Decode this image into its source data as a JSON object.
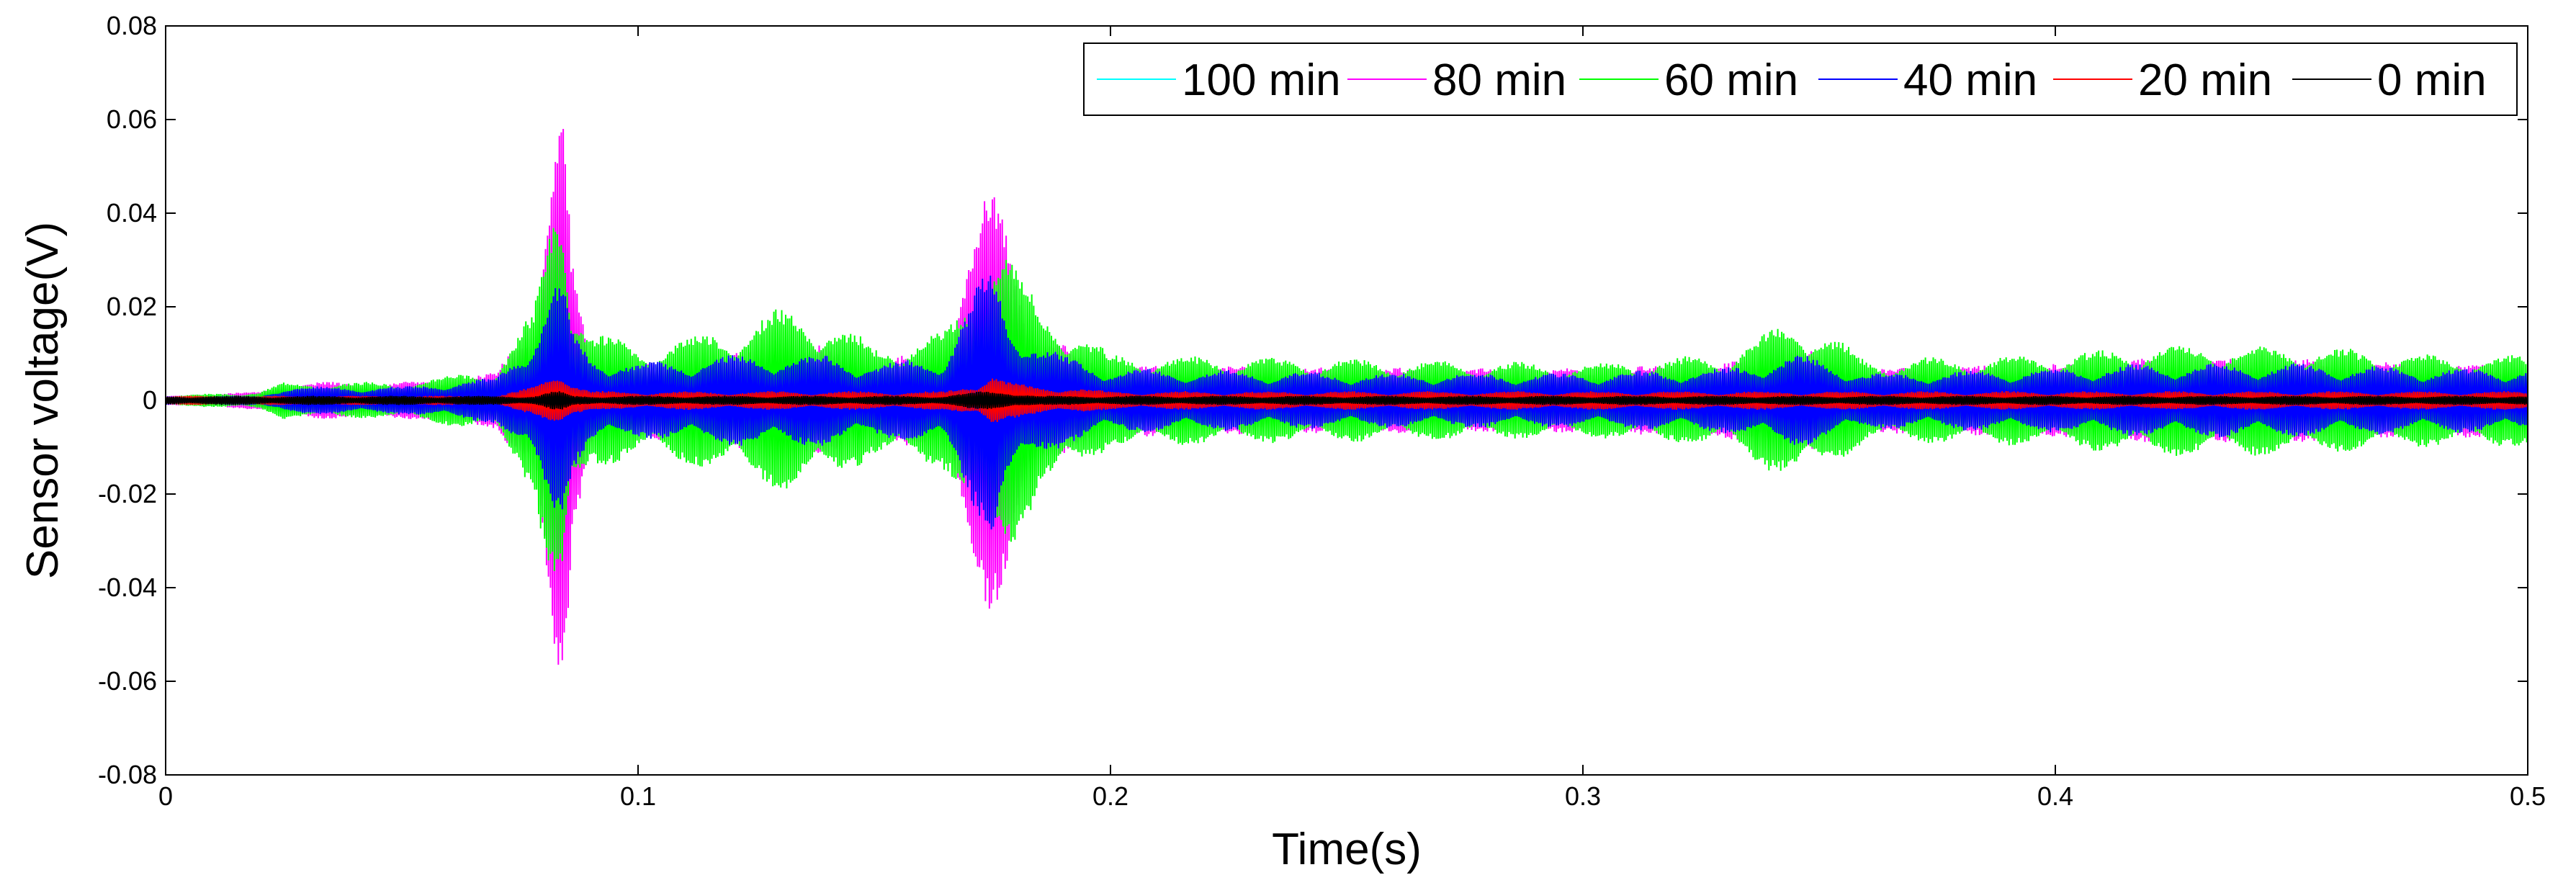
{
  "chart_data": {
    "type": "line",
    "title": "",
    "xlabel": "Time(s)",
    "ylabel": "Sensor voltage(V)",
    "xlim": [
      0,
      0.5
    ],
    "ylim": [
      -0.08,
      0.08
    ],
    "xticks": [
      0,
      0.1,
      0.2,
      0.3,
      0.4,
      0.5
    ],
    "xtick_labels": [
      "0",
      "0.1",
      "0.2",
      "0.3",
      "0.4",
      "0.5"
    ],
    "yticks": [
      -0.08,
      -0.06,
      -0.04,
      -0.02,
      0,
      0.02,
      0.04,
      0.06,
      0.08
    ],
    "ytick_labels": [
      "-0.08",
      "-0.06",
      "-0.04",
      "-0.02",
      "0",
      "0.02",
      "0.04",
      "0.06",
      "0.08"
    ],
    "grid": false,
    "legend_position": "top-right",
    "legend_orientation": "horizontal",
    "series_description": "Oscillating sensor voltage signals; each series is summarised by its approximate envelope amplitude (V) versus time (s).",
    "envelope_time": [
      0,
      0.02,
      0.025,
      0.05,
      0.07,
      0.078,
      0.082,
      0.084,
      0.086,
      0.09,
      0.1,
      0.12,
      0.13,
      0.14,
      0.15,
      0.165,
      0.172,
      0.175,
      0.178,
      0.185,
      0.19,
      0.2,
      0.25,
      0.3,
      0.33,
      0.345,
      0.35,
      0.36,
      0.4,
      0.42,
      0.45,
      0.48,
      0.5
    ],
    "series": [
      {
        "name": "100 min",
        "color": "#00ffff",
        "envelope": [
          0.001,
          0.001,
          0.002,
          0.002,
          0.003,
          0.006,
          0.02,
          0.025,
          0.01,
          0.004,
          0.003,
          0.004,
          0.005,
          0.004,
          0.004,
          0.006,
          0.012,
          0.015,
          0.01,
          0.006,
          0.005,
          0.004,
          0.004,
          0.004,
          0.004,
          0.005,
          0.004,
          0.004,
          0.004,
          0.004,
          0.004,
          0.004,
          0.004
        ]
      },
      {
        "name": "80 min",
        "color": "#ff00ff",
        "envelope": [
          0.001,
          0.002,
          0.004,
          0.004,
          0.006,
          0.02,
          0.06,
          0.068,
          0.03,
          0.01,
          0.008,
          0.01,
          0.012,
          0.012,
          0.008,
          0.012,
          0.04,
          0.047,
          0.04,
          0.015,
          0.012,
          0.008,
          0.007,
          0.007,
          0.008,
          0.012,
          0.01,
          0.007,
          0.008,
          0.009,
          0.009,
          0.008,
          0.008
        ]
      },
      {
        "name": "60 min",
        "color": "#00ff00",
        "envelope": [
          0.001,
          0.002,
          0.004,
          0.004,
          0.007,
          0.02,
          0.045,
          0.05,
          0.025,
          0.015,
          0.012,
          0.016,
          0.02,
          0.018,
          0.012,
          0.015,
          0.025,
          0.035,
          0.035,
          0.02,
          0.018,
          0.01,
          0.009,
          0.008,
          0.01,
          0.018,
          0.016,
          0.009,
          0.01,
          0.012,
          0.012,
          0.01,
          0.01
        ]
      },
      {
        "name": "40 min",
        "color": "#0000ff",
        "envelope": [
          0.001,
          0.001,
          0.003,
          0.003,
          0.005,
          0.015,
          0.025,
          0.026,
          0.015,
          0.01,
          0.008,
          0.01,
          0.01,
          0.01,
          0.008,
          0.01,
          0.025,
          0.03,
          0.02,
          0.012,
          0.01,
          0.007,
          0.006,
          0.006,
          0.007,
          0.01,
          0.009,
          0.006,
          0.007,
          0.008,
          0.008,
          0.007,
          0.007
        ]
      },
      {
        "name": "20 min",
        "color": "#ff0000",
        "envelope": [
          0.001,
          0.001,
          0.001,
          0.001,
          0.001,
          0.003,
          0.006,
          0.007,
          0.004,
          0.002,
          0.002,
          0.002,
          0.002,
          0.002,
          0.002,
          0.002,
          0.004,
          0.006,
          0.004,
          0.003,
          0.003,
          0.002,
          0.002,
          0.002,
          0.002,
          0.002,
          0.002,
          0.002,
          0.002,
          0.002,
          0.002,
          0.002,
          0.002
        ]
      },
      {
        "name": "0 min",
        "color": "#000000",
        "envelope": [
          0.001,
          0.001,
          0.001,
          0.001,
          0.001,
          0.001,
          0.002,
          0.002,
          0.001,
          0.001,
          0.001,
          0.001,
          0.001,
          0.001,
          0.001,
          0.001,
          0.002,
          0.002,
          0.002,
          0.001,
          0.001,
          0.001,
          0.001,
          0.001,
          0.001,
          0.001,
          0.001,
          0.001,
          0.001,
          0.001,
          0.001,
          0.001,
          0.001
        ]
      }
    ]
  }
}
